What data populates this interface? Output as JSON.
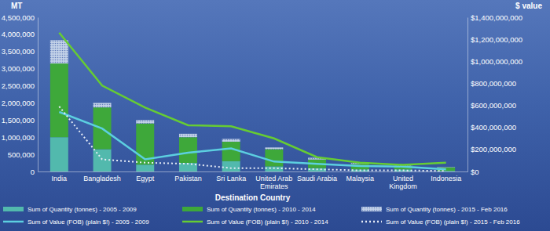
{
  "chart_data": {
    "type": "bar",
    "stacked": true,
    "x_label": "Destination Country",
    "y_label": "MT",
    "y2_label": "$ value",
    "categories": [
      "India",
      "Bangladesh",
      "Egypt",
      "Pakistan",
      "Sri Lanka",
      "United Arab Emirates",
      "Saudi Arabia",
      "Malaysia",
      "United Kingdom",
      "Indonesia"
    ],
    "ylim": [
      0,
      4500000
    ],
    "yticks": [
      0,
      {
        "value": 500000,
        "label": "500,000"
      },
      {
        "value": 1000000,
        "label": "1,000,000"
      },
      {
        "value": 1500000,
        "label": "1,500,000"
      },
      {
        "value": 2000000,
        "label": "2,000,000"
      },
      {
        "value": 2500000,
        "label": "2,500,000"
      },
      {
        "value": 3000000,
        "label": "3,000,000"
      },
      {
        "value": 3500000,
        "label": "3,500,000"
      },
      {
        "value": 4000000,
        "label": "4,000,000"
      },
      {
        "value": 4500000,
        "label": "4,500,000"
      }
    ],
    "y2lim": [
      0,
      1400000000
    ],
    "y2ticks": [
      {
        "value": 0,
        "label": "$0"
      },
      {
        "value": 200000000,
        "label": "$200,000,000"
      },
      {
        "value": 400000000,
        "label": "$400,000,000"
      },
      {
        "value": 600000000,
        "label": "$600,000,000"
      },
      {
        "value": 800000000,
        "label": "$800,000,000"
      },
      {
        "value": 1000000000,
        "label": "$1,000,000,000"
      },
      {
        "value": 1200000000,
        "label": "$1,200,000,000"
      },
      {
        "value": 1400000000,
        "label": "$1,400,000,000"
      }
    ],
    "grid": false,
    "legend": "bottom",
    "series": [
      {
        "name": "Sum of Quantity (tonnes) - 2005 - 2009",
        "type": "bar",
        "color": "#52b9ad",
        "values": [
          1000000,
          650000,
          200000,
          250000,
          300000,
          150000,
          100000,
          60000,
          60000,
          20000
        ]
      },
      {
        "name": "Sum of Quantity (tonnes) - 2010 - 2014",
        "type": "bar",
        "color": "#3ea83a",
        "values": [
          2150000,
          1220000,
          1200000,
          750000,
          570000,
          500000,
          250000,
          160000,
          110000,
          100000
        ]
      },
      {
        "name": "Sum of Quantity (tonnes) - 2015 - Feb 2016",
        "type": "bar",
        "color": "#c3d2e8",
        "line_style": "dotted",
        "values": [
          680000,
          130000,
          100000,
          100000,
          80000,
          50000,
          50000,
          30000,
          20000,
          10000
        ]
      },
      {
        "name": "Sum of Value (FOB) (plain $!) - 2005 - 2009",
        "type": "line",
        "axis": "y2",
        "color": "#5ccfe0",
        "values": [
          540000000,
          390000000,
          110000000,
          170000000,
          210000000,
          90000000,
          70000000,
          50000000,
          45000000,
          20000000
        ]
      },
      {
        "name": "Sum of Value (FOB) (plain $!) - 2010 - 2014",
        "type": "line",
        "axis": "y2",
        "color": "#66cc33",
        "values": [
          1260000000,
          780000000,
          580000000,
          420000000,
          410000000,
          300000000,
          130000000,
          80000000,
          60000000,
          80000000
        ]
      },
      {
        "name": "Sum of Value (FOB) (plain $!) - 2015 - Feb 2016",
        "type": "line",
        "axis": "y2",
        "color": "#e6ecf7",
        "line_style": "dotted",
        "values": [
          590000000,
          110000000,
          80000000,
          70000000,
          30000000,
          30000000,
          20000000,
          10000000,
          10000000,
          5000000
        ]
      }
    ]
  }
}
